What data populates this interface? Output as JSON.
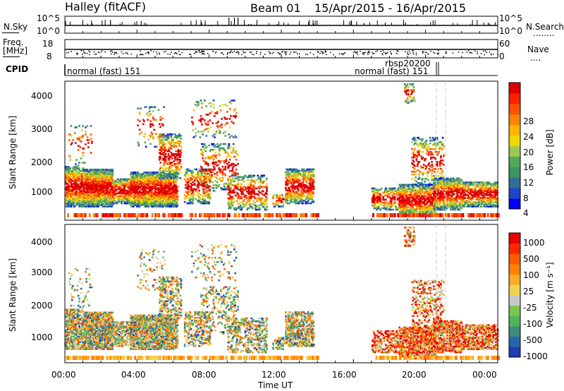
{
  "header": {
    "station": "Halley (fitACF)",
    "beam": "Beam 01",
    "date_range": "15/Apr/2015 - 16/Apr/2015"
  },
  "noise_panel": {
    "left_label": "N.Sky",
    "right_label": "N.Search",
    "right_label_dots": "........",
    "left_ticks": [
      "10^5",
      "10^0"
    ],
    "right_ticks": [
      "10^5",
      "10^0"
    ]
  },
  "freq_panel": {
    "left_label_line1": "Freq.",
    "left_label_line2": "[MHz]",
    "left_ticks": [
      "18",
      "8"
    ],
    "right_label": "Nave",
    "right_label_dots": "....",
    "right_ticks": [
      "60",
      "0"
    ]
  },
  "cpid_panel": {
    "label": "CPID",
    "segments": [
      {
        "text": "normal (fast) 151"
      },
      {
        "text": "normal (fast) 151"
      },
      {
        "text": "rbsp20200"
      }
    ]
  },
  "chart_data": [
    {
      "type": "heatmap",
      "name": "power",
      "ylabel": "Slant Range [km]",
      "yticks": [
        "4000",
        "3000",
        "2000",
        "1000"
      ],
      "colorbar_label": "Power [dB]",
      "colorbar_ticks": [
        "28",
        "24",
        "20",
        "16",
        "12",
        "8",
        "4"
      ],
      "colorbar_colors": [
        "#0000ff",
        "#1e46c8",
        "#326e96",
        "#3c9664",
        "#50aa5a",
        "#a0c850",
        "#f0d700",
        "#ffb400",
        "#ff8200",
        "#ff5000",
        "#ff1e00",
        "#dc0000"
      ],
      "ylim": [
        180,
        4600
      ],
      "xlim_hours": [
        0,
        24
      ]
    },
    {
      "type": "heatmap",
      "name": "velocity",
      "ylabel": "Slant Range [km]",
      "yticks": [
        "4000",
        "3000",
        "2000",
        "1000"
      ],
      "colorbar_label": "Velocity [m s⁻¹]",
      "colorbar_ticks": [
        "1000",
        "500",
        "100",
        "25",
        "-25",
        "-100",
        "-500",
        "-1000"
      ],
      "colorbar_colors": [
        "#1e3cb4",
        "#2864aa",
        "#3c8c78",
        "#50b45a",
        "#78c850",
        "#c8c8c8",
        "#f0d250",
        "#ffaa28",
        "#ff8200",
        "#ff5a00",
        "#ff2800",
        "#e60000"
      ],
      "ylim": [
        180,
        4600
      ],
      "xlim_hours": [
        0,
        24
      ]
    }
  ],
  "x_axis": {
    "ticks": [
      "00:00",
      "04:00",
      "08:00",
      "12:00",
      "16:00",
      "20:00",
      "00:00"
    ],
    "label": "Time UT"
  }
}
